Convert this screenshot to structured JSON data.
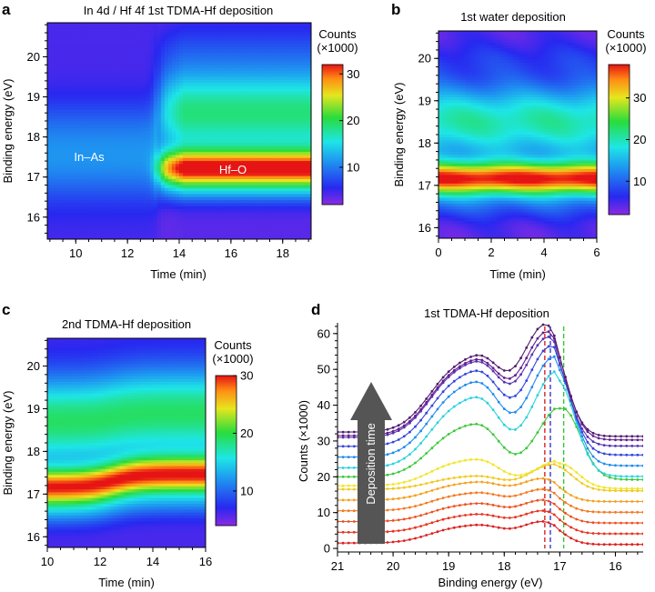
{
  "panels": {
    "a": {
      "letter": "a",
      "title": "In 4d / Hf 4f 1st TDMA-Hf deposition",
      "xlabel": "Time (min)",
      "ylabel": "Binding energy (eV)",
      "x_ticks": [
        "10",
        "12",
        "14",
        "16",
        "18"
      ],
      "y_ticks": [
        "16",
        "17",
        "18",
        "19",
        "20"
      ],
      "colorbar": {
        "title_line1": "Counts",
        "title_line2": "(×1000)",
        "ticks": [
          "10",
          "20",
          "30"
        ]
      },
      "annotations": {
        "in_as": "In–As",
        "hf_o": "Hf–O"
      }
    },
    "b": {
      "letter": "b",
      "title": "1st water deposition",
      "xlabel": "Time (min)",
      "ylabel": "Binding energy (eV)",
      "x_ticks": [
        "0",
        "2",
        "4",
        "6"
      ],
      "y_ticks": [
        "16",
        "17",
        "18",
        "19",
        "20"
      ],
      "colorbar": {
        "title_line1": "Counts",
        "title_line2": "(×1000)",
        "ticks": [
          "10",
          "20",
          "30"
        ]
      }
    },
    "c": {
      "letter": "c",
      "title": "2nd TDMA-Hf deposition",
      "xlabel": "Time (min)",
      "ylabel": "Binding energy (eV)",
      "x_ticks": [
        "10",
        "12",
        "14",
        "16"
      ],
      "y_ticks": [
        "16",
        "17",
        "18",
        "19",
        "20"
      ],
      "colorbar": {
        "title_line1": "Counts",
        "title_line2": "(×1000)",
        "ticks": [
          "10",
          "20",
          "30"
        ]
      }
    },
    "d": {
      "letter": "d",
      "title": "1st TDMA-Hf deposition",
      "xlabel": "Binding energy (eV)",
      "ylabel": "Counts (×1000)",
      "x_ticks": [
        "21",
        "20",
        "19",
        "18",
        "17",
        "16"
      ],
      "y_ticks": [
        "0",
        "10",
        "20",
        "30",
        "40",
        "50",
        "60"
      ],
      "arrow_label": "Deposition time"
    }
  },
  "chart_data": [
    {
      "type": "heatmap",
      "panel": "a",
      "title": "In 4d / Hf 4f 1st TDMA-Hf deposition",
      "xlabel": "Time (min)",
      "ylabel": "Binding energy (eV)",
      "xlim": [
        8.9,
        19.1
      ],
      "ylim": [
        15.45,
        20.85
      ],
      "colorbar_range": [
        2,
        32
      ],
      "colorbar_label": "Counts (×1000)",
      "transition_time": 13.2,
      "before": {
        "peak_energy": 17.4,
        "peak_counts": 8,
        "label": "In–As"
      },
      "after": {
        "peak_energy": 17.2,
        "peak_counts": 32,
        "label": "Hf–O"
      }
    },
    {
      "type": "heatmap",
      "panel": "b",
      "title": "1st water deposition",
      "xlabel": "Time (min)",
      "ylabel": "Binding energy (eV)",
      "xlim": [
        0,
        6
      ],
      "ylim": [
        15.75,
        20.65
      ],
      "colorbar_range": [
        2,
        38
      ],
      "colorbar_label": "Counts (×1000)",
      "peak_energy": 17.15,
      "peak_counts": 35
    },
    {
      "type": "heatmap",
      "panel": "c",
      "title": "2nd TDMA-Hf deposition",
      "xlabel": "Time (min)",
      "ylabel": "Binding energy (eV)",
      "xlim": [
        10,
        16
      ],
      "ylim": [
        15.75,
        20.65
      ],
      "colorbar_range": [
        4,
        30
      ],
      "colorbar_label": "Counts (×1000)",
      "peak_energy_start": 17.15,
      "peak_energy_end": 17.45,
      "shift_time": 12.5
    },
    {
      "type": "line",
      "panel": "d",
      "title": "1st TDMA-Hf deposition",
      "xlabel": "Binding energy (eV)",
      "ylabel": "Counts (×1000)",
      "xlim": [
        21,
        15.5
      ],
      "ylim": [
        -1,
        63
      ],
      "reference_lines": [
        {
          "x": 17.27,
          "color": "#d21414",
          "style": "dashed"
        },
        {
          "x": 17.17,
          "color": "#2828c8",
          "style": "dashed"
        },
        {
          "x": 16.93,
          "color": "#28c828",
          "style": "dashed"
        }
      ],
      "series": [
        {
          "name": "t1",
          "color": "#dc1e1e",
          "baseline": 1.0,
          "base_level": 0.5,
          "low_peak": 4,
          "main_peak": 6,
          "main_center": 17.3
        },
        {
          "name": "t2",
          "color": "#e8321e",
          "baseline": 4.0,
          "base_level": 0.5,
          "low_peak": 4,
          "main_peak": 6,
          "main_center": 17.3
        },
        {
          "name": "t3",
          "color": "#ee501e",
          "baseline": 7.0,
          "base_level": 0.5,
          "low_peak": 4,
          "main_peak": 6,
          "main_center": 17.3
        },
        {
          "name": "t4",
          "color": "#f5781e",
          "baseline": 10.0,
          "base_level": 0.5,
          "low_peak": 4,
          "main_peak": 6,
          "main_center": 17.3
        },
        {
          "name": "t5",
          "color": "#f5a01e",
          "baseline": 13.0,
          "base_level": 0.5,
          "low_peak": 4,
          "main_peak": 6,
          "main_center": 17.3
        },
        {
          "name": "t6",
          "color": "#f0c81e",
          "baseline": 16.0,
          "base_level": 0.5,
          "low_peak": 3,
          "main_peak": 7,
          "main_center": 17.1
        },
        {
          "name": "t7",
          "color": "#f0e628",
          "baseline": 16.5,
          "base_level": 1.0,
          "low_peak": 6,
          "main_peak": 7,
          "main_center": 17.0
        },
        {
          "name": "t8",
          "color": "#3cc83c",
          "baseline": 19.0,
          "base_level": 1.0,
          "low_peak": 12,
          "main_peak": 20,
          "main_center": 16.95
        },
        {
          "name": "t9",
          "color": "#28d2dc",
          "baseline": 19.5,
          "base_level": 3.0,
          "low_peak": 16,
          "main_peak": 27,
          "main_center": 17.05
        },
        {
          "name": "t10",
          "color": "#1e8cf0",
          "baseline": 22.5,
          "base_level": 3.0,
          "low_peak": 17,
          "main_peak": 28,
          "main_center": 17.1
        },
        {
          "name": "t11",
          "color": "#3246dc",
          "baseline": 25.5,
          "base_level": 3.0,
          "low_peak": 17,
          "main_peak": 28,
          "main_center": 17.15
        },
        {
          "name": "t12",
          "color": "#5a32b4",
          "baseline": 28.0,
          "base_level": 3.0,
          "low_peak": 17,
          "main_peak": 28,
          "main_center": 17.2
        },
        {
          "name": "t13",
          "color": "#641e8c",
          "baseline": 30.0,
          "base_level": 1.5,
          "low_peak": 17,
          "main_peak": 29,
          "main_center": 17.22
        },
        {
          "name": "t14",
          "color": "#501e6e",
          "baseline": 31.0,
          "base_level": 1.5,
          "low_peak": 17,
          "main_peak": 30,
          "main_center": 17.25
        }
      ]
    }
  ]
}
